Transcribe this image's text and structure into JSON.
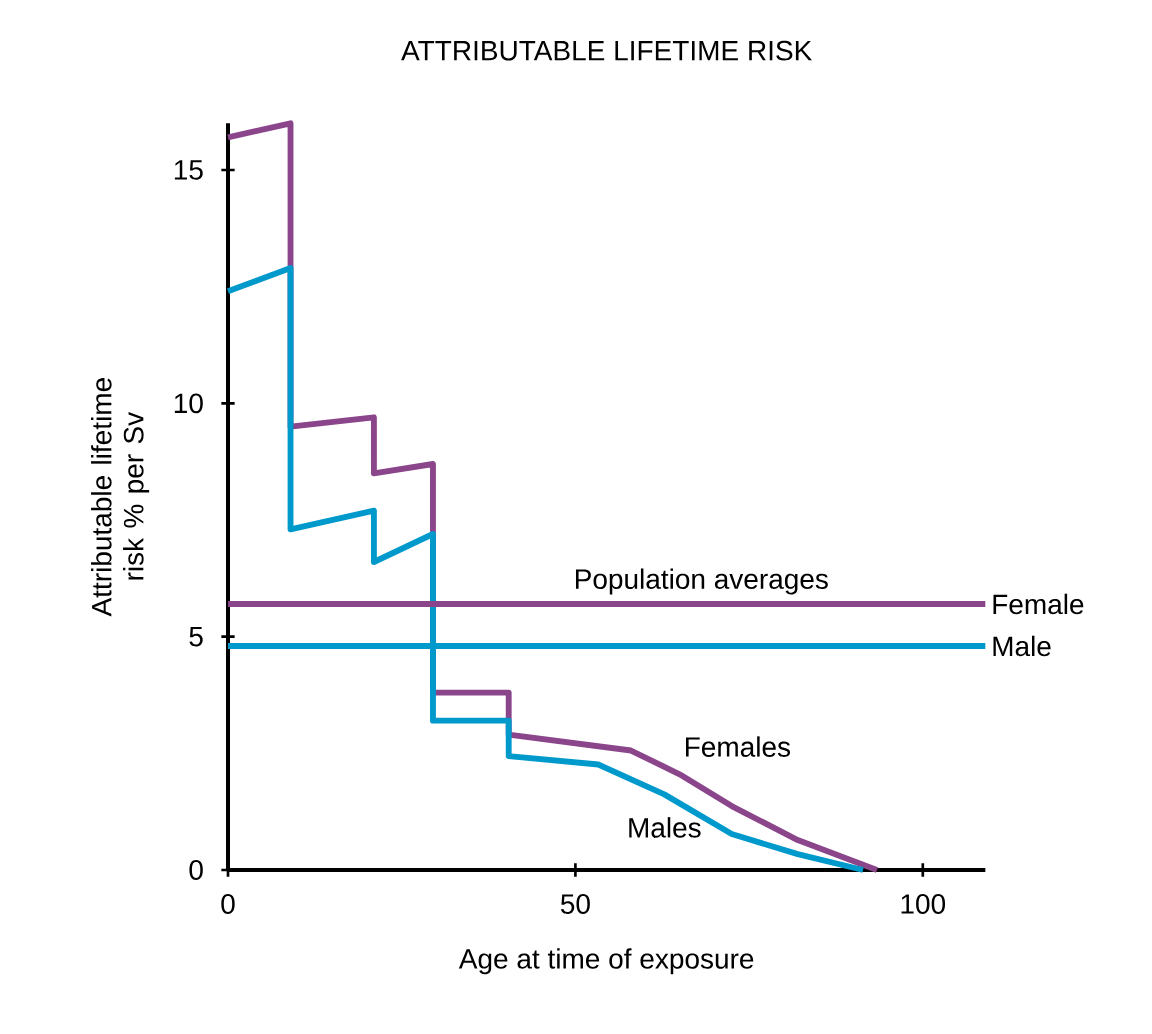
{
  "chart_data": {
    "type": "line",
    "title": "ATTRIBUTABLE LIFETIME RISK",
    "xlabel": "Age at time of exposure",
    "ylabel": "Attributable lifetime risk % per Sv",
    "xlim": [
      0,
      109
    ],
    "ylim": [
      0,
      16
    ],
    "xticks": [
      0,
      50,
      100
    ],
    "yticks": [
      0,
      5,
      10,
      15
    ],
    "grid": false,
    "legend": false,
    "marker": "none",
    "line_style": "solid",
    "series": [
      {
        "name": "Females",
        "color": "#8b458b",
        "x": [
          0,
          9,
          9,
          21,
          21,
          29.5,
          29.5,
          40.4,
          40.4,
          58,
          65,
          72.5,
          82,
          93.4
        ],
        "values": [
          15.7,
          16.0,
          9.5,
          9.7,
          8.5,
          8.7,
          3.8,
          3.8,
          2.9,
          2.56,
          2.05,
          1.37,
          0.64,
          0
        ]
      },
      {
        "name": "Males",
        "color": "#0099cc",
        "x": [
          0,
          9,
          9,
          21,
          21,
          29.5,
          29.5,
          40.4,
          40.4,
          53.3,
          62.8,
          72.5,
          82,
          91.4
        ],
        "values": [
          12.4,
          12.9,
          7.3,
          7.7,
          6.6,
          7.2,
          3.2,
          3.2,
          2.44,
          2.26,
          1.62,
          0.77,
          0.34,
          0
        ]
      }
    ],
    "ref_lines": [
      {
        "axis": "y",
        "value": 5.7,
        "label": "Female",
        "color": "#8b458b"
      },
      {
        "axis": "y",
        "value": 4.8,
        "label": "Male",
        "color": "#0099cc"
      }
    ],
    "annotations": [
      "Population averages"
    ]
  }
}
